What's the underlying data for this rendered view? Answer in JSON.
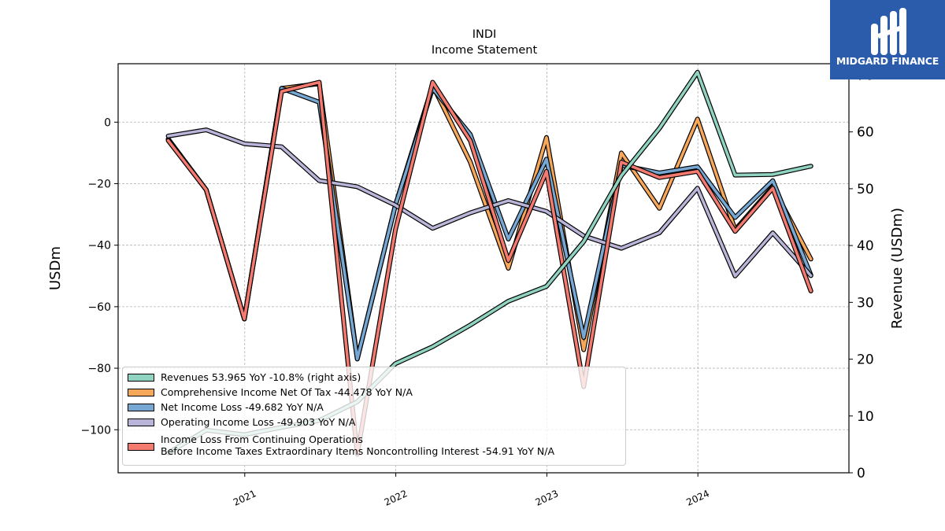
{
  "chart_data": {
    "type": "line",
    "title": "INDI",
    "subtitle": "Income Statement",
    "ylabel": "USDm",
    "ylabel_right": "Revenue (USDm)",
    "ylim": [
      -114,
      19
    ],
    "ylim_right": [
      0,
      72
    ],
    "yticks": [
      0,
      -20,
      -40,
      -60,
      -80,
      -100
    ],
    "yticks_right": [
      0,
      10,
      20,
      30,
      40,
      50,
      60,
      70
    ],
    "x_ticks": [
      "2021",
      "2022",
      "2023",
      "2024"
    ],
    "grid": true,
    "legend_position": "lower-left",
    "x": [
      "2020-06-30",
      "2020-09-30",
      "2020-12-31",
      "2021-03-31",
      "2021-06-30",
      "2021-09-30",
      "2021-12-31",
      "2022-03-31",
      "2022-06-30",
      "2022-09-30",
      "2022-12-31",
      "2023-03-31",
      "2023-06-30",
      "2023-09-30",
      "2023-12-31",
      "2024-03-31",
      "2024-06-30",
      "2024-09-30"
    ],
    "series": [
      {
        "name": "Comprehensive Income Net Of Tax  -44.478 YoY N/A",
        "axis": "left",
        "color": "#f6a75a",
        "values": [
          -5.5,
          -22,
          -64,
          11,
          12.5,
          -77,
          -27,
          12,
          -13,
          -47.5,
          -5,
          -74,
          -10,
          -28,
          1,
          -35,
          -21,
          -44.5
        ]
      },
      {
        "name": "Net Income Loss  -49.682 YoY N/A",
        "axis": "left",
        "color": "#76a8d3",
        "values": [
          -5.5,
          -22,
          -64,
          11,
          6.5,
          -77,
          -27,
          11,
          -4,
          -38,
          -12,
          -70,
          -14,
          -16.5,
          -14.5,
          -31,
          -19,
          -49.7
        ]
      },
      {
        "name": "Operating Income Loss  -49.903 YoY N/A",
        "axis": "left",
        "color": "#b9b5d8",
        "values": [
          -4.5,
          -2.5,
          -7,
          -8,
          -19,
          -21,
          -27,
          -34.5,
          -29.5,
          -25.5,
          -29,
          -37,
          -41,
          -36,
          -21.5,
          -50,
          -36,
          -49.9
        ]
      },
      {
        "name": "Income Loss From Continuing Operations\nBefore Income Taxes Extraordinary Items Noncontrolling Interest  -54.91 YoY N/A",
        "axis": "left",
        "color": "#f47a6f",
        "values": [
          -6,
          -22,
          -64,
          10,
          13,
          -108,
          -35,
          13,
          -6,
          -45,
          -16,
          -86,
          -13,
          -18,
          -16,
          -35.5,
          -21.5,
          -54.9
        ]
      },
      {
        "name": "Revenues  53.965 YoY -10.8% (right axis)",
        "axis": "right",
        "color": "#8fd3c0",
        "values": [
          3.5,
          7.5,
          6.7,
          8,
          9.2,
          12.5,
          19.2,
          22.2,
          26,
          30.2,
          32.8,
          40.7,
          52.3,
          60.6,
          70.5,
          52.4,
          52.5,
          53.97
        ]
      }
    ]
  },
  "legend": {
    "items": [
      {
        "label": "Revenues  53.965 YoY -10.8% (right axis)",
        "color": "#8fd3c0"
      },
      {
        "label": "Comprehensive Income Net Of Tax  -44.478 YoY N/A",
        "color": "#f6a75a"
      },
      {
        "label": "Net Income Loss  -49.682 YoY N/A",
        "color": "#76a8d3"
      },
      {
        "label": "Operating Income Loss  -49.903 YoY N/A",
        "color": "#b9b5d8"
      },
      {
        "label": "Income Loss From Continuing Operations\nBefore Income Taxes Extraordinary Items Noncontrolling Interest  -54.91 YoY N/A",
        "color": "#f47a6f"
      }
    ]
  },
  "logo": {
    "text": "MIDGARD FINANCE",
    "bg_color": "#2b5cab"
  }
}
